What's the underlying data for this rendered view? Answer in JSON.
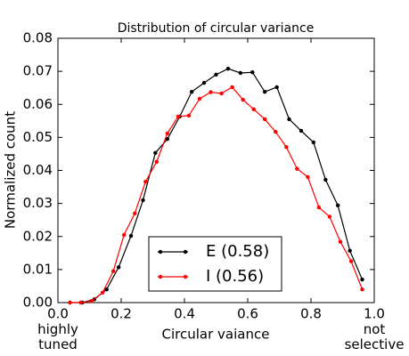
{
  "chart_data": {
    "type": "line",
    "title": "Distribution of circular variance",
    "xlabel": "Circular vaiance",
    "ylabel": "Normalized count",
    "annotations": [
      "highly\ntuned",
      "not\nselective"
    ],
    "series": [
      {
        "name": "E (0.58)",
        "color": "#000000",
        "x": [
          0.038,
          0.077,
          0.115,
          0.154,
          0.192,
          0.231,
          0.269,
          0.308,
          0.346,
          0.385,
          0.423,
          0.462,
          0.5,
          0.538,
          0.577,
          0.615,
          0.654,
          0.692,
          0.731,
          0.769,
          0.808,
          0.846,
          0.885,
          0.923,
          0.962
        ],
        "values": [
          0,
          0,
          0.001,
          0.004,
          0.0107,
          0.0202,
          0.031,
          0.0453,
          0.0495,
          0.0563,
          0.0638,
          0.0665,
          0.069,
          0.0708,
          0.0695,
          0.0697,
          0.0638,
          0.0652,
          0.0555,
          0.052,
          0.0485,
          0.0372,
          0.0294,
          0.0157,
          0.007
        ]
      },
      {
        "name": "I (0.56)",
        "color": "#ff0000",
        "x": [
          0.038,
          0.072,
          0.106,
          0.141,
          0.175,
          0.209,
          0.243,
          0.277,
          0.312,
          0.346,
          0.38,
          0.414,
          0.448,
          0.483,
          0.517,
          0.551,
          0.585,
          0.619,
          0.654,
          0.688,
          0.722,
          0.756,
          0.79,
          0.825,
          0.859,
          0.893,
          0.927,
          0.962
        ],
        "values": [
          0,
          0,
          0.0005,
          0.003,
          0.0095,
          0.0205,
          0.027,
          0.0366,
          0.0426,
          0.0512,
          0.0563,
          0.0566,
          0.0617,
          0.0637,
          0.0633,
          0.0652,
          0.0614,
          0.0585,
          0.0555,
          0.0517,
          0.0471,
          0.0405,
          0.038,
          0.0288,
          0.026,
          0.0184,
          0.0125,
          0.004
        ]
      }
    ],
    "xlim": [
      0,
      1
    ],
    "xticks": [
      {
        "value": 0,
        "label": "0.0"
      },
      {
        "value": 0.2,
        "label": "0.2"
      },
      {
        "value": 0.4,
        "label": "0.4"
      },
      {
        "value": 0.6,
        "label": "0.6"
      },
      {
        "value": 0.8,
        "label": "0.8"
      },
      {
        "value": 1,
        "label": "1.0"
      }
    ],
    "ylim": [
      0,
      0.08
    ],
    "yticks": [
      {
        "value": 0,
        "label": "0.00"
      },
      {
        "value": 0.01,
        "label": "0.01"
      },
      {
        "value": 0.02,
        "label": "0.02"
      },
      {
        "value": 0.03,
        "label": "0.03"
      },
      {
        "value": 0.04,
        "label": "0.04"
      },
      {
        "value": 0.05,
        "label": "0.05"
      },
      {
        "value": 0.06,
        "label": "0.06"
      },
      {
        "value": 0.07,
        "label": "0.07"
      },
      {
        "value": 0.08,
        "label": "0.08"
      }
    ],
    "grid": false,
    "legend": "lower center"
  }
}
